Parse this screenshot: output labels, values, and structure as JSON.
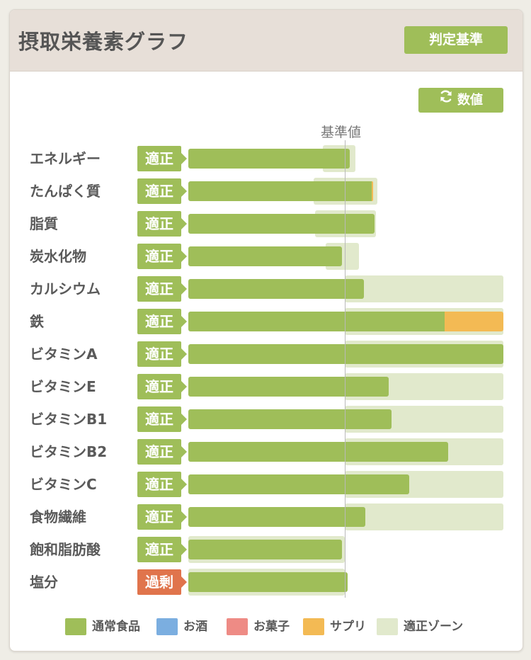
{
  "header": {
    "title": "摂取栄養素グラフ",
    "criteria_button": "判定基準"
  },
  "toolbar": {
    "values_button": "数値",
    "refresh_icon": "refresh-icon"
  },
  "chart_data": {
    "type": "bar",
    "reference_label": "基準値",
    "orientation": "horizontal",
    "reference_value": 1.0,
    "categories": [
      "エネルギー",
      "たんぱく質",
      "脂質",
      "炭水化物",
      "カルシウム",
      "鉄",
      "ビタミンA",
      "ビタミンE",
      "ビタミンB1",
      "ビタミンB2",
      "ビタミンC",
      "食物繊維",
      "飽和脂肪酸",
      "塩分"
    ],
    "status": [
      "適正",
      "適正",
      "適正",
      "適正",
      "適正",
      "適正",
      "適正",
      "適正",
      "適正",
      "適正",
      "適正",
      "適正",
      "適正",
      "過剰"
    ],
    "series": [
      {
        "name": "通常食品",
        "values": [
          1.03,
          1.17,
          1.19,
          0.98,
          1.12,
          1.64,
          2.03,
          1.28,
          1.3,
          1.66,
          1.41,
          1.13,
          0.98,
          1.02
        ]
      },
      {
        "name": "お酒",
        "values": [
          0,
          0,
          0,
          0,
          0,
          0,
          0,
          0,
          0,
          0,
          0,
          0,
          0,
          0
        ]
      },
      {
        "name": "お菓子",
        "values": [
          0,
          0,
          0,
          0,
          0,
          0,
          0,
          0,
          0,
          0,
          0,
          0,
          0,
          0
        ]
      },
      {
        "name": "サプリ",
        "values": [
          0,
          0.01,
          0,
          0,
          0,
          0.47,
          0,
          0,
          0,
          0,
          0,
          0,
          0,
          0
        ]
      }
    ],
    "appropriate_zone": [
      [
        0.86,
        1.07
      ],
      [
        0.8,
        1.21
      ],
      [
        0.81,
        1.2
      ],
      [
        0.88,
        1.09
      ],
      [
        1.0,
        2.04
      ],
      [
        1.0,
        2.04
      ],
      [
        1.0,
        2.04
      ],
      [
        1.0,
        2.04
      ],
      [
        1.0,
        2.04
      ],
      [
        1.0,
        2.04
      ],
      [
        1.0,
        2.04
      ],
      [
        1.0,
        2.04
      ],
      [
        0,
        1.0
      ],
      [
        0,
        1.0
      ]
    ],
    "legend": [
      "通常食品",
      "お酒",
      "お菓子",
      "サプリ",
      "適正ゾーン"
    ],
    "colors": {
      "通常食品": "#9fbe59",
      "お酒": "#7baee0",
      "お菓子": "#ee8b85",
      "サプリ": "#f3ba54",
      "適正ゾーン": "#e1e9cc",
      "適正": "#9fbe59",
      "過剰": "#e0744c"
    }
  }
}
